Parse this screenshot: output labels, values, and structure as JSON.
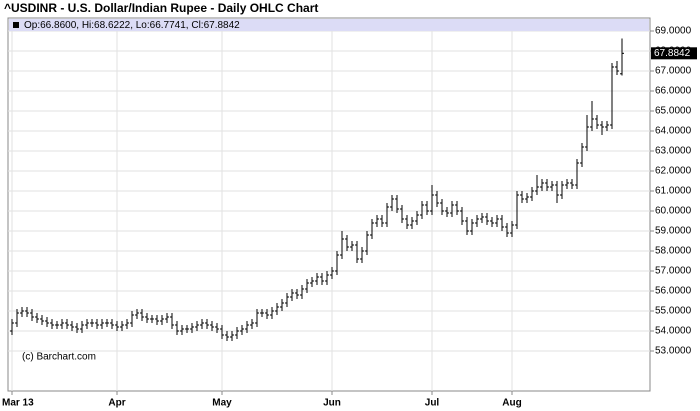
{
  "chart_data": {
    "type": "ohlc",
    "title": "^USDINR - U.S. Dollar/Indian Rupee - Daily OHLC Chart",
    "legend_text": "Op:66.8600, Hi:68.6222, Lo:66.7741, Cl:67.8842",
    "credit": "(c) Barchart.com",
    "color": "#000000",
    "grid": true,
    "categories": [
      "Mar 13",
      null,
      null,
      null,
      null,
      null,
      null,
      null,
      null,
      null,
      null,
      null,
      null,
      null,
      null,
      null,
      null,
      null,
      null,
      null,
      null,
      "Apr",
      null,
      null,
      null,
      null,
      null,
      null,
      null,
      null,
      null,
      null,
      null,
      null,
      null,
      null,
      null,
      null,
      null,
      null,
      null,
      null,
      "May",
      null,
      null,
      null,
      null,
      null,
      null,
      null,
      null,
      null,
      null,
      null,
      null,
      null,
      null,
      null,
      null,
      null,
      null,
      null,
      null,
      null,
      "Jun",
      null,
      null,
      null,
      null,
      null,
      null,
      null,
      null,
      null,
      null,
      null,
      null,
      null,
      null,
      null,
      null,
      null,
      null,
      null,
      "Jul",
      null,
      null,
      null,
      null,
      null,
      null,
      null,
      null,
      null,
      null,
      null,
      null,
      null,
      null,
      null,
      "Aug",
      null,
      null,
      null,
      null,
      null,
      null,
      null,
      null,
      null,
      null,
      null,
      null,
      null,
      null,
      null,
      null,
      null,
      null,
      null,
      null,
      null,
      null
    ],
    "open": [
      54.0,
      54.4,
      54.9,
      55.0,
      54.9,
      54.7,
      54.6,
      54.5,
      54.4,
      54.3,
      54.3,
      54.4,
      54.3,
      54.2,
      54.1,
      54.3,
      54.4,
      54.4,
      54.3,
      54.4,
      54.4,
      54.3,
      54.2,
      54.3,
      54.4,
      54.8,
      54.9,
      54.7,
      54.6,
      54.6,
      54.5,
      54.6,
      54.7,
      54.3,
      54.0,
      54.1,
      54.1,
      54.2,
      54.3,
      54.4,
      54.3,
      54.2,
      54.1,
      53.8,
      53.7,
      53.8,
      54.0,
      54.1,
      54.3,
      54.4,
      54.9,
      54.9,
      54.8,
      55.0,
      55.2,
      55.4,
      55.7,
      55.9,
      55.8,
      56.1,
      56.4,
      56.5,
      56.7,
      56.5,
      56.8,
      57.0,
      57.8,
      58.6,
      58.2,
      58.3,
      57.6,
      58.0,
      58.8,
      59.4,
      59.6,
      59.4,
      60.2,
      60.6,
      60.1,
      59.6,
      59.3,
      59.5,
      59.8,
      60.3,
      60.0,
      60.8,
      60.4,
      60.0,
      59.9,
      60.3,
      60.0,
      59.5,
      59.0,
      59.4,
      59.6,
      59.7,
      59.5,
      59.4,
      59.6,
      59.2,
      58.9,
      59.3,
      60.8,
      60.6,
      60.7,
      61.0,
      61.2,
      61.4,
      61.2,
      61.3,
      60.8,
      61.3,
      61.4,
      61.3,
      62.4,
      63.2,
      64.2,
      64.6,
      64.3,
      64.2,
      64.3,
      67.2,
      66.86
    ],
    "high": [
      54.6,
      55.1,
      55.2,
      55.2,
      55.1,
      54.9,
      54.8,
      54.7,
      54.6,
      54.5,
      54.6,
      54.6,
      54.5,
      54.4,
      54.5,
      54.6,
      54.6,
      54.6,
      54.6,
      54.6,
      54.6,
      54.5,
      54.5,
      54.6,
      55.0,
      55.1,
      55.1,
      54.9,
      54.8,
      54.8,
      54.8,
      54.9,
      54.9,
      54.5,
      54.3,
      54.3,
      54.4,
      54.5,
      54.6,
      54.6,
      54.5,
      54.4,
      54.3,
      54.0,
      54.0,
      54.2,
      54.3,
      54.5,
      54.6,
      55.1,
      55.1,
      55.1,
      55.2,
      55.4,
      55.6,
      55.9,
      56.1,
      56.1,
      56.3,
      56.6,
      56.7,
      56.9,
      56.9,
      57.0,
      57.2,
      58.0,
      59.0,
      58.8,
      58.5,
      58.5,
      58.2,
      59.0,
      59.6,
      59.8,
      59.8,
      60.4,
      60.8,
      60.8,
      60.3,
      59.8,
      59.7,
      60.0,
      60.5,
      60.5,
      61.3,
      61.0,
      60.6,
      60.2,
      60.5,
      60.5,
      60.2,
      59.7,
      59.6,
      59.8,
      59.9,
      59.9,
      59.7,
      59.8,
      59.8,
      59.4,
      59.5,
      61.0,
      61.0,
      60.9,
      61.2,
      61.8,
      61.6,
      61.6,
      61.5,
      61.5,
      61.5,
      61.6,
      61.6,
      62.6,
      63.4,
      64.8,
      65.5,
      64.8,
      64.5,
      64.5,
      67.4,
      67.5,
      68.6222
    ],
    "low": [
      53.8,
      54.2,
      54.7,
      54.7,
      54.5,
      54.4,
      54.3,
      54.2,
      54.1,
      54.1,
      54.1,
      54.1,
      54.0,
      53.9,
      53.9,
      54.1,
      54.2,
      54.1,
      54.1,
      54.2,
      54.1,
      54.0,
      54.0,
      54.1,
      54.2,
      54.6,
      54.5,
      54.4,
      54.4,
      54.3,
      54.3,
      54.4,
      54.1,
      53.8,
      53.8,
      53.9,
      53.9,
      54.0,
      54.1,
      54.1,
      54.0,
      53.9,
      53.6,
      53.5,
      53.5,
      53.6,
      53.8,
      53.9,
      54.1,
      54.2,
      54.7,
      54.6,
      54.6,
      54.8,
      55.0,
      55.2,
      55.5,
      55.6,
      55.6,
      55.9,
      56.2,
      56.3,
      56.3,
      56.3,
      56.6,
      56.8,
      57.6,
      58.0,
      58.0,
      57.4,
      57.4,
      57.8,
      58.6,
      59.2,
      59.2,
      59.2,
      60.0,
      59.9,
      59.4,
      59.1,
      59.1,
      59.3,
      59.6,
      59.8,
      59.8,
      60.2,
      59.8,
      59.7,
      59.7,
      59.8,
      59.3,
      58.8,
      58.8,
      59.2,
      59.4,
      59.3,
      59.2,
      59.2,
      59.0,
      58.7,
      58.7,
      59.1,
      60.4,
      60.4,
      60.5,
      60.8,
      61.0,
      61.0,
      61.0,
      60.4,
      60.6,
      61.1,
      61.1,
      61.1,
      62.2,
      63.0,
      64.0,
      64.1,
      63.8,
      64.0,
      64.1,
      66.8,
      66.7741
    ],
    "close": [
      54.4,
      54.9,
      55.0,
      54.9,
      54.7,
      54.6,
      54.5,
      54.4,
      54.3,
      54.3,
      54.4,
      54.3,
      54.2,
      54.1,
      54.3,
      54.4,
      54.4,
      54.3,
      54.4,
      54.4,
      54.3,
      54.2,
      54.3,
      54.4,
      54.8,
      54.9,
      54.7,
      54.6,
      54.6,
      54.5,
      54.6,
      54.7,
      54.3,
      54.0,
      54.1,
      54.1,
      54.2,
      54.3,
      54.4,
      54.3,
      54.2,
      54.1,
      53.8,
      53.7,
      53.8,
      54.0,
      54.1,
      54.3,
      54.4,
      54.9,
      54.9,
      54.8,
      55.0,
      55.2,
      55.4,
      55.7,
      55.9,
      55.8,
      56.1,
      56.4,
      56.5,
      56.7,
      56.5,
      56.8,
      57.0,
      57.8,
      58.6,
      58.2,
      58.3,
      57.6,
      58.0,
      58.8,
      59.4,
      59.6,
      59.4,
      60.2,
      60.6,
      60.1,
      59.6,
      59.3,
      59.5,
      59.8,
      60.3,
      60.0,
      60.8,
      60.4,
      60.0,
      59.9,
      60.3,
      60.0,
      59.5,
      59.0,
      59.4,
      59.6,
      59.7,
      59.5,
      59.4,
      59.6,
      59.2,
      58.9,
      59.3,
      60.8,
      60.6,
      60.7,
      61.0,
      61.2,
      61.4,
      61.2,
      61.3,
      60.8,
      61.3,
      61.4,
      61.3,
      62.4,
      63.2,
      64.2,
      64.6,
      64.3,
      64.2,
      64.3,
      67.2,
      67.0,
      67.8842
    ],
    "ylim": [
      51,
      69.65
    ],
    "yticks": [
      {
        "value": 53,
        "label": "53.0000"
      },
      {
        "value": 54,
        "label": "54.0000"
      },
      {
        "value": 55,
        "label": "55.0000"
      },
      {
        "value": 56,
        "label": "56.0000"
      },
      {
        "value": 57,
        "label": "57.0000"
      },
      {
        "value": 58,
        "label": "58.0000"
      },
      {
        "value": 59,
        "label": "59.0000"
      },
      {
        "value": 60,
        "label": "60.0000"
      },
      {
        "value": 61,
        "label": "61.0000"
      },
      {
        "value": 62,
        "label": "62.0000"
      },
      {
        "value": 63,
        "label": "63.0000"
      },
      {
        "value": 64,
        "label": "64.0000"
      },
      {
        "value": 65,
        "label": "65.0000"
      },
      {
        "value": 66,
        "label": "66.0000"
      },
      {
        "value": 67,
        "label": "67.0000"
      },
      {
        "value": 68,
        "label": "68.0000"
      },
      {
        "value": 69,
        "label": "69.0000"
      }
    ]
  }
}
